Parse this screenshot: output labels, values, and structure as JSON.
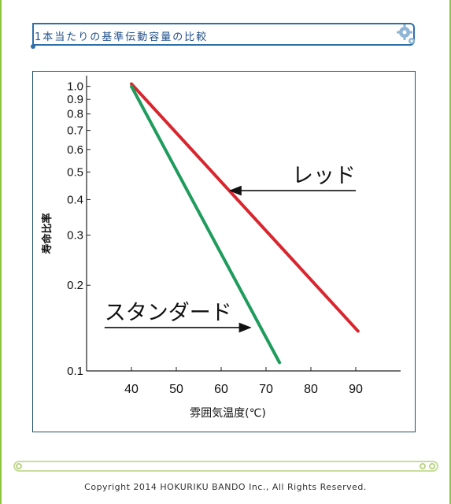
{
  "header": {
    "title": "1本当たりの基準伝動容量の比較"
  },
  "chart_data": {
    "type": "line",
    "xlabel": "雰囲気温度(℃)",
    "ylabel": "寿命比率",
    "xlim": [
      30,
      100
    ],
    "ylim": [
      0.1,
      1.05
    ],
    "y_scale": "log",
    "x_ticks": [
      "40",
      "50",
      "60",
      "70",
      "80",
      "90"
    ],
    "y_ticks": [
      "0.1",
      "0.2",
      "0.3",
      "0.4",
      "0.5",
      "0.6",
      "0.7",
      "0.8",
      "0.9",
      "1.0"
    ],
    "grid": false,
    "series": [
      {
        "name": "レッド",
        "color": "#d9262e",
        "x": [
          40,
          90.5
        ],
        "y": [
          1.02,
          0.138
        ]
      },
      {
        "name": "スタンダード",
        "color": "#1e9c5c",
        "x": [
          40,
          73
        ],
        "y": [
          1.0,
          0.107
        ]
      }
    ],
    "annotations": [
      {
        "text": "レッド",
        "arrow_from": [
          90,
          0.43
        ],
        "arrow_to": [
          62,
          0.43
        ]
      },
      {
        "text": "スタンダード",
        "arrow_from": [
          34,
          0.142
        ],
        "arrow_to": [
          66.5,
          0.142
        ]
      }
    ]
  },
  "footer": {
    "copyright": "Copyright  2014 HOKURIKU BANDO  Inc., All Rights Reserved."
  }
}
